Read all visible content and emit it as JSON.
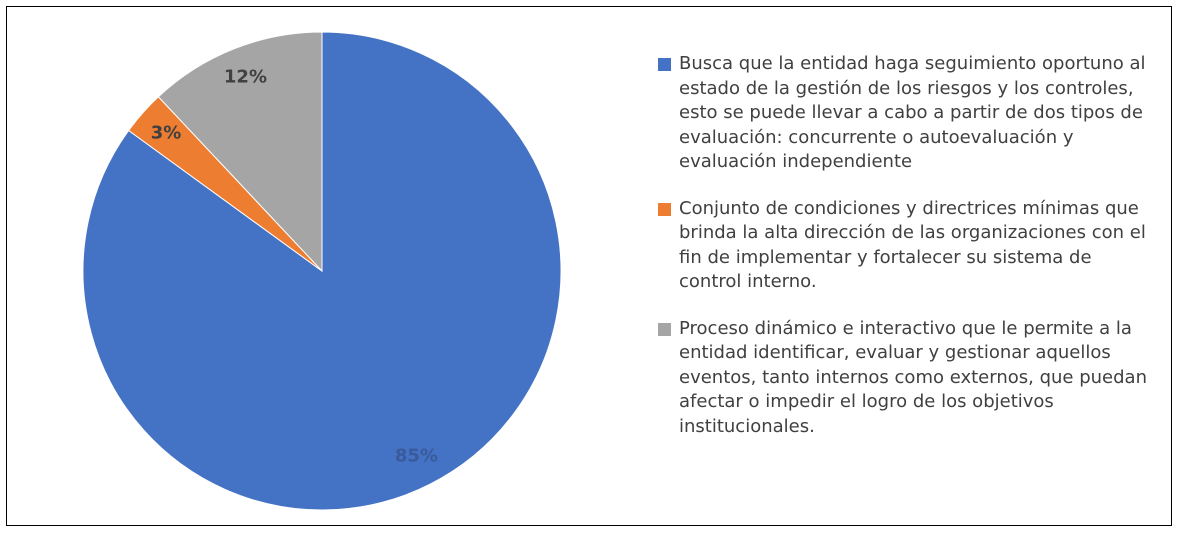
{
  "chart_data": {
    "type": "pie",
    "categories": [
      "Busca que la entidad haga seguimiento oportuno al estado de la gestión de los riesgos y los controles, esto se puede llevar a cabo a partir de dos tipos de evaluación: concurrente o autoevaluación y evaluación independiente",
      "Conjunto de condiciones y directrices mínimas que brinda la alta dirección de las organizaciones con el fin de implementar y fortalecer su sistema de control interno.",
      "Proceso dinámico e interactivo que le permite a la entidad identificar, evaluar y gestionar aquellos eventos, tanto internos como externos, que puedan afectar o impedir el logro de los objetivos institucionales."
    ],
    "values": [
      85,
      3,
      12
    ],
    "value_labels": [
      "85%",
      "3%",
      "12%"
    ],
    "colors": [
      "#4472c4",
      "#ed7d31",
      "#a5a5a5"
    ],
    "legend": "right"
  }
}
